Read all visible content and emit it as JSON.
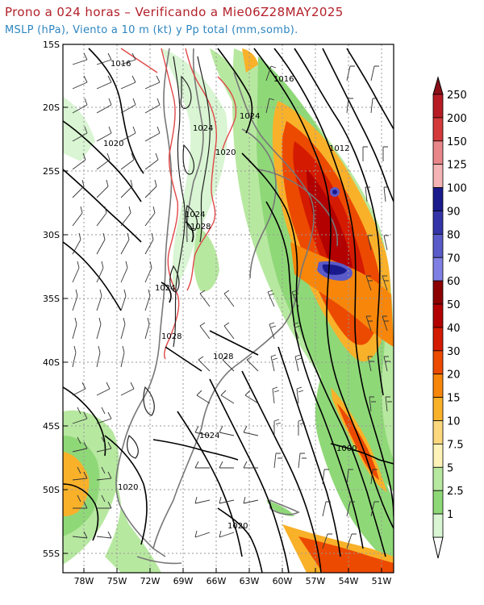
{
  "header": {
    "title": "Prono a 024 horas – Verificando a Mie06Z28MAY2025",
    "subtitle": "MSLP (hPa), Viento a 10 m (kt) y Pp total (mm,somb)."
  },
  "axes": {
    "lat_labels": [
      "15S",
      "20S",
      "25S",
      "30S",
      "35S",
      "40S",
      "45S",
      "50S",
      "55S"
    ],
    "lon_labels": [
      "78W",
      "75W",
      "72W",
      "69W",
      "66W",
      "63W",
      "60W",
      "57W",
      "54W",
      "51W"
    ]
  },
  "isobar_labels": [
    "1016",
    "1016",
    "1024",
    "1024",
    "1020",
    "1020",
    "1012",
    "1024",
    "1028",
    "1024",
    "1028",
    "1028",
    "1024",
    "1000",
    "1020",
    "1020"
  ],
  "colorbar": {
    "labels": [
      "250",
      "200",
      "150",
      "125",
      "100",
      "90",
      "80",
      "70",
      "60",
      "50",
      "40",
      "30",
      "20",
      "15",
      "10",
      "7.5",
      "5",
      "2.5",
      "1"
    ],
    "colors": [
      "#b71c24",
      "#d43a3a",
      "#e8868a",
      "#f4b3b5",
      "#1a1a8c",
      "#3434a8",
      "#5a5ac8",
      "#8080e4",
      "#8c0000",
      "#b30000",
      "#d41a00",
      "#ec4a00",
      "#f7860b",
      "#f9b12a",
      "#fbd77d",
      "#fdf3b8",
      "#b7e8a0",
      "#8fd878",
      "#d9f5d3"
    ]
  }
}
